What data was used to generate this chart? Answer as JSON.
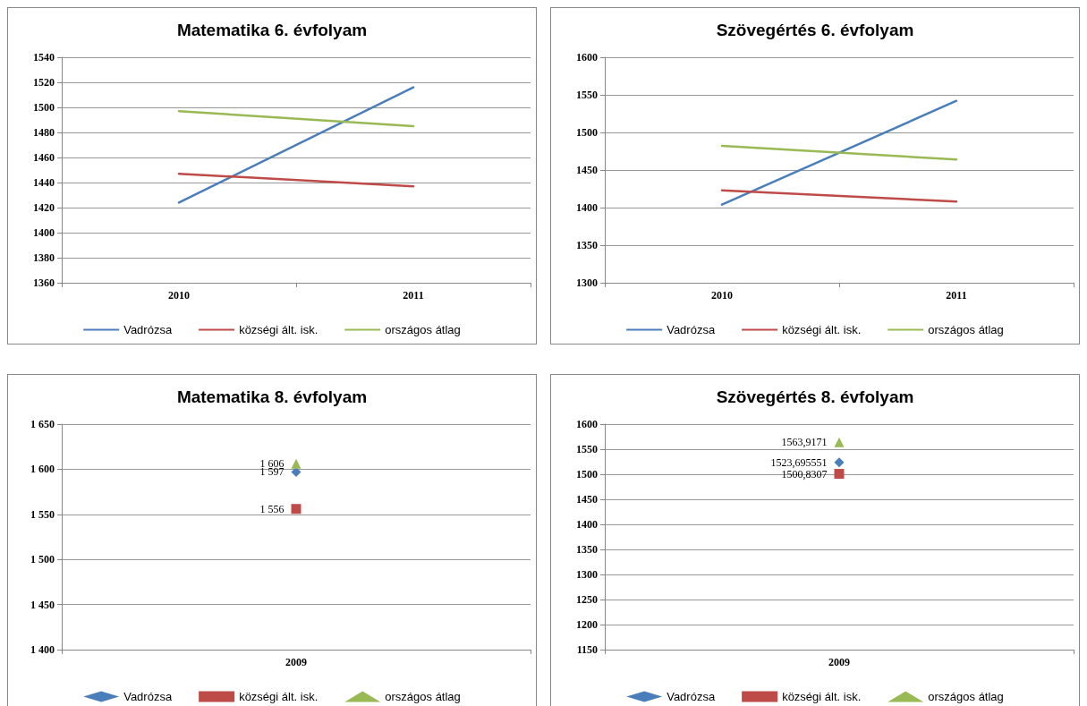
{
  "chart_data": [
    {
      "type": "line",
      "title": "Matematika 6. évfolyam",
      "categories": [
        "2010",
        "2011"
      ],
      "ylim": [
        1360,
        1540
      ],
      "yticks": [
        1360,
        1380,
        1400,
        1420,
        1440,
        1460,
        1480,
        1500,
        1520,
        1540
      ],
      "grid": "y",
      "legend": "bottom",
      "marker": "none",
      "series": [
        {
          "name": "Vadrózsa",
          "color": "#4a7ebb",
          "values": [
            1424,
            1516
          ]
        },
        {
          "name": "községi ált. isk.",
          "color": "#be4b48",
          "values": [
            1447,
            1437
          ]
        },
        {
          "name": "országos átlag",
          "color": "#98b954",
          "values": [
            1497,
            1485
          ]
        }
      ]
    },
    {
      "type": "line",
      "title": "Szövegértés 6. évfolyam",
      "categories": [
        "2010",
        "2011"
      ],
      "ylim": [
        1300,
        1600
      ],
      "yticks": [
        1300,
        1350,
        1400,
        1450,
        1500,
        1550,
        1600
      ],
      "grid": "y",
      "legend": "bottom",
      "marker": "none",
      "series": [
        {
          "name": "Vadrózsa",
          "color": "#4a7ebb",
          "values": [
            1404,
            1542
          ]
        },
        {
          "name": "községi ált. isk.",
          "color": "#be4b48",
          "values": [
            1423,
            1408
          ]
        },
        {
          "name": "országos átlag",
          "color": "#98b954",
          "values": [
            1482,
            1464
          ]
        }
      ]
    },
    {
      "type": "line",
      "title": "Matematika 8. évfolyam",
      "categories": [
        "2009"
      ],
      "ylim": [
        1400,
        1650
      ],
      "yticks": [
        {
          "value": 1400,
          "label": "1 400"
        },
        {
          "value": 1450,
          "label": "1 450"
        },
        {
          "value": 1500,
          "label": "1 500"
        },
        {
          "value": 1550,
          "label": "1 550"
        },
        {
          "value": 1600,
          "label": "1 600"
        },
        {
          "value": 1650,
          "label": "1 650"
        }
      ],
      "grid": "y",
      "legend": "bottom",
      "series": [
        {
          "name": "Vadrózsa",
          "color": "#4a7ebb",
          "marker": "diamond",
          "values": [
            1597
          ],
          "value_labels": [
            "1 597"
          ]
        },
        {
          "name": "községi ált. isk.",
          "color": "#be4b48",
          "marker": "square",
          "values": [
            1556
          ],
          "value_labels": [
            "1 556"
          ]
        },
        {
          "name": "országos átlag",
          "color": "#98b954",
          "marker": "triangle",
          "values": [
            1606
          ],
          "value_labels": [
            "1 606"
          ]
        }
      ]
    },
    {
      "type": "line",
      "title": "Szövegértés 8. évfolyam",
      "categories": [
        "2009"
      ],
      "ylim": [
        1150,
        1600
      ],
      "yticks": [
        1150,
        1200,
        1250,
        1300,
        1350,
        1400,
        1450,
        1500,
        1550,
        1600
      ],
      "grid": "y",
      "legend": "bottom",
      "series": [
        {
          "name": "Vadrózsa",
          "color": "#4a7ebb",
          "marker": "diamond",
          "values": [
            1523.695551
          ],
          "value_labels": [
            "1523,695551"
          ]
        },
        {
          "name": "községi ált. isk.",
          "color": "#be4b48",
          "marker": "square",
          "values": [
            1500.8307
          ],
          "value_labels": [
            "1500,8307"
          ]
        },
        {
          "name": "országos átlag",
          "color": "#98b954",
          "marker": "triangle",
          "values": [
            1563.9171
          ],
          "value_labels": [
            "1563,9171"
          ]
        }
      ]
    }
  ]
}
